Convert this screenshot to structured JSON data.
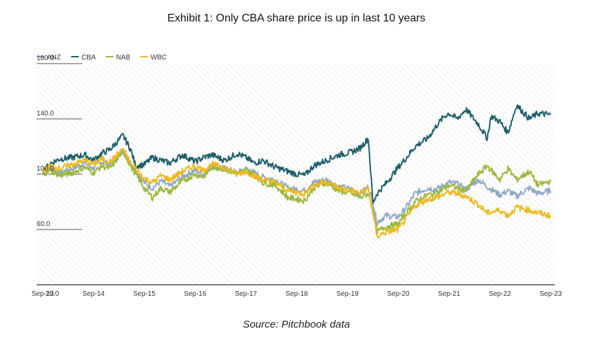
{
  "title": "Exhibit 1: Only CBA share price is up in last 10 years",
  "source": "Source: Pitchbook data",
  "chart_data": {
    "type": "line",
    "title": "Exhibit 1: Only CBA share price is up in last 10 years",
    "xlabel": "",
    "ylabel": "",
    "ylim": [
      20,
      180
    ],
    "y_ticks": [
      "20.0",
      "60.0",
      "100.0",
      "140.0",
      "180.0"
    ],
    "y_tick_values": [
      20,
      60,
      100,
      140,
      180
    ],
    "x_ticks": [
      "Sep-13",
      "Sep-14",
      "Sep-15",
      "Sep-16",
      "Sep-17",
      "Sep-18",
      "Sep-19",
      "Sep-20",
      "Sep-21",
      "Sep-22",
      "Sep-23"
    ],
    "x_tick_values": [
      2013.67,
      2014.67,
      2015.67,
      2016.67,
      2017.67,
      2018.67,
      2019.67,
      2020.67,
      2021.67,
      2022.67,
      2023.67
    ],
    "xlim": [
      2013.55,
      2023.75
    ],
    "grid": "diagonal hatch background",
    "legend_position": "top-left",
    "series": [
      {
        "name": "ANZ",
        "color": "#8fa8c8",
        "x": [
          2013.67,
          2013.83,
          2014.0,
          2014.25,
          2014.5,
          2014.67,
          2014.83,
          2015.0,
          2015.25,
          2015.4,
          2015.67,
          2015.83,
          2016.0,
          2016.17,
          2016.42,
          2016.67,
          2016.83,
          2017.0,
          2017.25,
          2017.5,
          2017.67,
          2017.83,
          2018.0,
          2018.25,
          2018.5,
          2018.67,
          2018.83,
          2019.0,
          2019.25,
          2019.5,
          2019.75,
          2019.92,
          2020.08,
          2020.17,
          2020.25,
          2020.42,
          2020.67,
          2020.83,
          2021.0,
          2021.25,
          2021.42,
          2021.67,
          2021.83,
          2022.0,
          2022.25,
          2022.42,
          2022.67,
          2022.83,
          2023.0,
          2023.25,
          2023.42,
          2023.67
        ],
        "values": [
          100,
          105,
          101,
          104,
          108,
          104,
          109,
          107,
          117,
          108,
          94,
          90,
          95,
          91,
          98,
          103,
          100,
          106,
          104,
          101,
          104,
          101,
          98,
          96,
          90,
          89,
          88,
          94,
          96,
          91,
          89,
          86,
          91,
          80,
          65,
          70,
          69,
          76,
          86,
          90,
          89,
          94,
          93,
          89,
          96,
          91,
          85,
          88,
          84,
          90,
          86,
          88
        ]
      },
      {
        "name": "CBA",
        "color": "#1d5e6a",
        "x": [
          2013.67,
          2013.83,
          2014.0,
          2014.25,
          2014.5,
          2014.67,
          2014.83,
          2015.0,
          2015.25,
          2015.4,
          2015.5,
          2015.67,
          2015.83,
          2016.0,
          2016.17,
          2016.42,
          2016.67,
          2016.83,
          2017.0,
          2017.25,
          2017.5,
          2017.67,
          2017.83,
          2018.0,
          2018.25,
          2018.5,
          2018.67,
          2018.83,
          2019.0,
          2019.25,
          2019.5,
          2019.75,
          2019.92,
          2020.08,
          2020.17,
          2020.25,
          2020.42,
          2020.67,
          2020.83,
          2021.0,
          2021.25,
          2021.42,
          2021.58,
          2021.67,
          2021.83,
          2022.0,
          2022.25,
          2022.42,
          2022.5,
          2022.67,
          2022.83,
          2023.0,
          2023.25,
          2023.42,
          2023.67
        ],
        "values": [
          102,
          108,
          111,
          112,
          114,
          110,
          115,
          118,
          128,
          118,
          106,
          107,
          112,
          110,
          108,
          114,
          109,
          112,
          114,
          110,
          115,
          112,
          108,
          110,
          105,
          102,
          100,
          99,
          106,
          110,
          114,
          116,
          119,
          126,
          79,
          86,
          93,
          105,
          112,
          120,
          126,
          135,
          142,
          144,
          140,
          147,
          136,
          126,
          142,
          138,
          130,
          150,
          140,
          144,
          143
        ]
      },
      {
        "name": "NAB",
        "color": "#9cb83a",
        "x": [
          2013.67,
          2013.83,
          2014.0,
          2014.25,
          2014.5,
          2014.67,
          2014.83,
          2015.0,
          2015.25,
          2015.4,
          2015.67,
          2015.83,
          2016.0,
          2016.17,
          2016.42,
          2016.67,
          2016.83,
          2017.0,
          2017.25,
          2017.5,
          2017.67,
          2017.83,
          2018.0,
          2018.25,
          2018.5,
          2018.67,
          2018.83,
          2019.0,
          2019.25,
          2019.5,
          2019.75,
          2019.92,
          2020.08,
          2020.17,
          2020.25,
          2020.42,
          2020.67,
          2020.83,
          2021.0,
          2021.25,
          2021.42,
          2021.67,
          2021.83,
          2022.0,
          2022.25,
          2022.42,
          2022.67,
          2022.83,
          2023.0,
          2023.25,
          2023.42,
          2023.67
        ],
        "values": [
          100,
          103,
          99,
          101,
          105,
          101,
          106,
          104,
          117,
          106,
          90,
          83,
          90,
          87,
          95,
          100,
          98,
          105,
          104,
          100,
          103,
          100,
          94,
          92,
          83,
          82,
          81,
          90,
          94,
          88,
          86,
          83,
          86,
          74,
          58,
          62,
          64,
          72,
          80,
          85,
          86,
          92,
          90,
          88,
          100,
          106,
          96,
          104,
          96,
          102,
          92,
          95
        ]
      },
      {
        "name": "WBC",
        "color": "#f0b81c",
        "x": [
          2013.67,
          2013.83,
          2014.0,
          2014.25,
          2014.5,
          2014.67,
          2014.83,
          2015.0,
          2015.25,
          2015.4,
          2015.67,
          2015.83,
          2016.0,
          2016.17,
          2016.42,
          2016.67,
          2016.83,
          2017.0,
          2017.25,
          2017.5,
          2017.67,
          2017.83,
          2018.0,
          2018.25,
          2018.5,
          2018.67,
          2018.83,
          2019.0,
          2019.25,
          2019.5,
          2019.75,
          2019.92,
          2020.08,
          2020.17,
          2020.25,
          2020.42,
          2020.67,
          2020.83,
          2021.0,
          2021.25,
          2021.42,
          2021.67,
          2021.83,
          2022.0,
          2022.25,
          2022.42,
          2022.67,
          2022.83,
          2023.0,
          2023.25,
          2023.42,
          2023.67
        ],
        "values": [
          102,
          106,
          104,
          107,
          110,
          107,
          111,
          109,
          118,
          108,
          97,
          94,
          99,
          96,
          102,
          106,
          103,
          107,
          105,
          100,
          102,
          99,
          96,
          94,
          88,
          87,
          86,
          92,
          95,
          90,
          88,
          86,
          90,
          72,
          55,
          58,
          60,
          68,
          77,
          82,
          83,
          87,
          86,
          84,
          78,
          72,
          74,
          70,
          76,
          74,
          72,
          70
        ]
      }
    ]
  }
}
